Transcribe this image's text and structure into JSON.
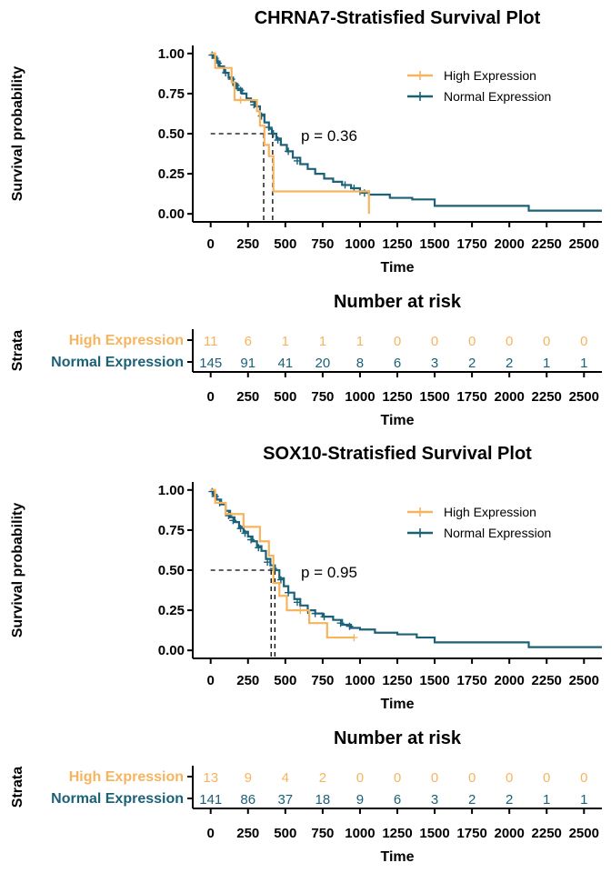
{
  "colors": {
    "high": "#F7B45E",
    "normal": "#1B6177",
    "axis": "#000000"
  },
  "x_axis_label": "Time",
  "y_axis_label": "Survival probability",
  "risk_axis_label": "Strata",
  "risk_title": "Number at risk",
  "x_ticks": [
    0,
    250,
    500,
    750,
    1000,
    1250,
    1500,
    1750,
    2000,
    2250,
    2500
  ],
  "y_ticks": [
    "0.00",
    "0.25",
    "0.50",
    "0.75",
    "1.00"
  ],
  "chart_data": [
    {
      "type": "line",
      "title": "CHRNA7-Stratisfied Survival Plot",
      "xlabel": "Time",
      "ylabel": "Survival probability",
      "xlim": [
        -120,
        2620
      ],
      "ylim": [
        -0.05,
        1.05
      ],
      "p_value_text": "p = 0.36",
      "legend_position": "top-right",
      "median_survival": [
        {
          "series": "High Expression",
          "x": 355
        },
        {
          "series": "Normal Expression",
          "x": 415
        }
      ],
      "series": [
        {
          "name": "High Expression",
          "color": "#F7B45E",
          "points": [
            [
              0,
              1.0
            ],
            [
              30,
              0.91
            ],
            [
              140,
              0.82
            ],
            [
              160,
              0.71
            ],
            [
              310,
              0.64
            ],
            [
              330,
              0.55
            ],
            [
              360,
              0.43
            ],
            [
              390,
              0.36
            ],
            [
              420,
              0.14
            ],
            [
              1060,
              0.0
            ]
          ],
          "censor": [
            [
              200,
              0.71
            ]
          ]
        },
        {
          "name": "Normal Expression",
          "color": "#1B6177",
          "points": [
            [
              0,
              1.0
            ],
            [
              20,
              0.98
            ],
            [
              40,
              0.95
            ],
            [
              60,
              0.92
            ],
            [
              90,
              0.88
            ],
            [
              120,
              0.85
            ],
            [
              150,
              0.81
            ],
            [
              180,
              0.78
            ],
            [
              210,
              0.75
            ],
            [
              240,
              0.72
            ],
            [
              270,
              0.7
            ],
            [
              300,
              0.67
            ],
            [
              330,
              0.62
            ],
            [
              360,
              0.57
            ],
            [
              390,
              0.53
            ],
            [
              410,
              0.5
            ],
            [
              440,
              0.47
            ],
            [
              470,
              0.43
            ],
            [
              510,
              0.39
            ],
            [
              550,
              0.35
            ],
            [
              600,
              0.31
            ],
            [
              650,
              0.28
            ],
            [
              700,
              0.25
            ],
            [
              760,
              0.22
            ],
            [
              820,
              0.2
            ],
            [
              880,
              0.18
            ],
            [
              940,
              0.16
            ],
            [
              1000,
              0.14
            ],
            [
              1060,
              0.12
            ],
            [
              1200,
              0.1
            ],
            [
              1350,
              0.09
            ],
            [
              1500,
              0.05
            ],
            [
              2130,
              0.02
            ],
            [
              2620,
              0.02
            ]
          ],
          "censor": [
            [
              10,
              0.99
            ],
            [
              30,
              0.97
            ],
            [
              50,
              0.94
            ],
            [
              100,
              0.88
            ],
            [
              140,
              0.84
            ],
            [
              170,
              0.8
            ],
            [
              200,
              0.77
            ],
            [
              290,
              0.68
            ],
            [
              340,
              0.61
            ],
            [
              390,
              0.54
            ],
            [
              420,
              0.5
            ],
            [
              450,
              0.46
            ],
            [
              520,
              0.39
            ],
            [
              580,
              0.33
            ],
            [
              900,
              0.18
            ],
            [
              960,
              0.16
            ],
            [
              1000,
              0.14
            ],
            [
              1030,
              0.13
            ]
          ]
        }
      ]
    },
    {
      "type": "line",
      "title": "SOX10-Stratisfied Survival Plot",
      "xlabel": "Time",
      "ylabel": "Survival probability",
      "xlim": [
        -120,
        2620
      ],
      "ylim": [
        -0.05,
        1.05
      ],
      "p_value_text": "p = 0.95",
      "legend_position": "top-right",
      "median_survival": [
        {
          "series": "High Expression",
          "x": 405
        },
        {
          "series": "Normal Expression",
          "x": 430
        }
      ],
      "series": [
        {
          "name": "High Expression",
          "color": "#F7B45E",
          "points": [
            [
              0,
              1.0
            ],
            [
              30,
              0.92
            ],
            [
              100,
              0.85
            ],
            [
              220,
              0.77
            ],
            [
              330,
              0.68
            ],
            [
              390,
              0.59
            ],
            [
              420,
              0.42
            ],
            [
              460,
              0.34
            ],
            [
              510,
              0.25
            ],
            [
              660,
              0.17
            ],
            [
              780,
              0.08
            ],
            [
              960,
              0.08
            ]
          ],
          "censor": [
            [
              600,
              0.25
            ],
            [
              960,
              0.08
            ]
          ]
        },
        {
          "name": "Normal Expression",
          "color": "#1B6177",
          "points": [
            [
              0,
              1.0
            ],
            [
              20,
              0.97
            ],
            [
              40,
              0.94
            ],
            [
              70,
              0.91
            ],
            [
              100,
              0.87
            ],
            [
              130,
              0.83
            ],
            [
              160,
              0.8
            ],
            [
              190,
              0.77
            ],
            [
              220,
              0.74
            ],
            [
              250,
              0.71
            ],
            [
              280,
              0.68
            ],
            [
              310,
              0.65
            ],
            [
              340,
              0.62
            ],
            [
              370,
              0.57
            ],
            [
              400,
              0.53
            ],
            [
              430,
              0.5
            ],
            [
              460,
              0.45
            ],
            [
              490,
              0.4
            ],
            [
              520,
              0.36
            ],
            [
              560,
              0.32
            ],
            [
              600,
              0.28
            ],
            [
              650,
              0.25
            ],
            [
              700,
              0.23
            ],
            [
              750,
              0.21
            ],
            [
              820,
              0.19
            ],
            [
              880,
              0.16
            ],
            [
              940,
              0.14
            ],
            [
              1000,
              0.13
            ],
            [
              1100,
              0.11
            ],
            [
              1250,
              0.1
            ],
            [
              1380,
              0.08
            ],
            [
              1500,
              0.05
            ],
            [
              2130,
              0.02
            ],
            [
              2620,
              0.02
            ]
          ],
          "censor": [
            [
              10,
              0.99
            ],
            [
              30,
              0.96
            ],
            [
              60,
              0.92
            ],
            [
              120,
              0.84
            ],
            [
              150,
              0.81
            ],
            [
              200,
              0.76
            ],
            [
              230,
              0.73
            ],
            [
              270,
              0.69
            ],
            [
              320,
              0.64
            ],
            [
              380,
              0.55
            ],
            [
              420,
              0.51
            ],
            [
              470,
              0.44
            ],
            [
              520,
              0.36
            ],
            [
              580,
              0.3
            ],
            [
              650,
              0.25
            ],
            [
              700,
              0.23
            ],
            [
              760,
              0.21
            ],
            [
              870,
              0.17
            ],
            [
              930,
              0.15
            ]
          ]
        }
      ]
    }
  ],
  "risk_tables": [
    {
      "x": [
        0,
        250,
        500,
        750,
        1000,
        1250,
        1500,
        1750,
        2000,
        2250,
        2500
      ],
      "rows": [
        {
          "name": "High Expression",
          "color": "#F7B45E",
          "values": [
            11,
            6,
            1,
            1,
            1,
            0,
            0,
            0,
            0,
            0,
            0
          ]
        },
        {
          "name": "Normal Expression",
          "color": "#1B6177",
          "values": [
            145,
            91,
            41,
            20,
            8,
            6,
            3,
            2,
            2,
            1,
            1
          ]
        }
      ]
    },
    {
      "x": [
        0,
        250,
        500,
        750,
        1000,
        1250,
        1500,
        1750,
        2000,
        2250,
        2500
      ],
      "rows": [
        {
          "name": "High Expression",
          "color": "#F7B45E",
          "values": [
            13,
            9,
            4,
            2,
            0,
            0,
            0,
            0,
            0,
            0,
            0
          ]
        },
        {
          "name": "Normal Expression",
          "color": "#1B6177",
          "values": [
            141,
            86,
            37,
            18,
            9,
            6,
            3,
            2,
            2,
            1,
            1
          ]
        }
      ]
    }
  ]
}
